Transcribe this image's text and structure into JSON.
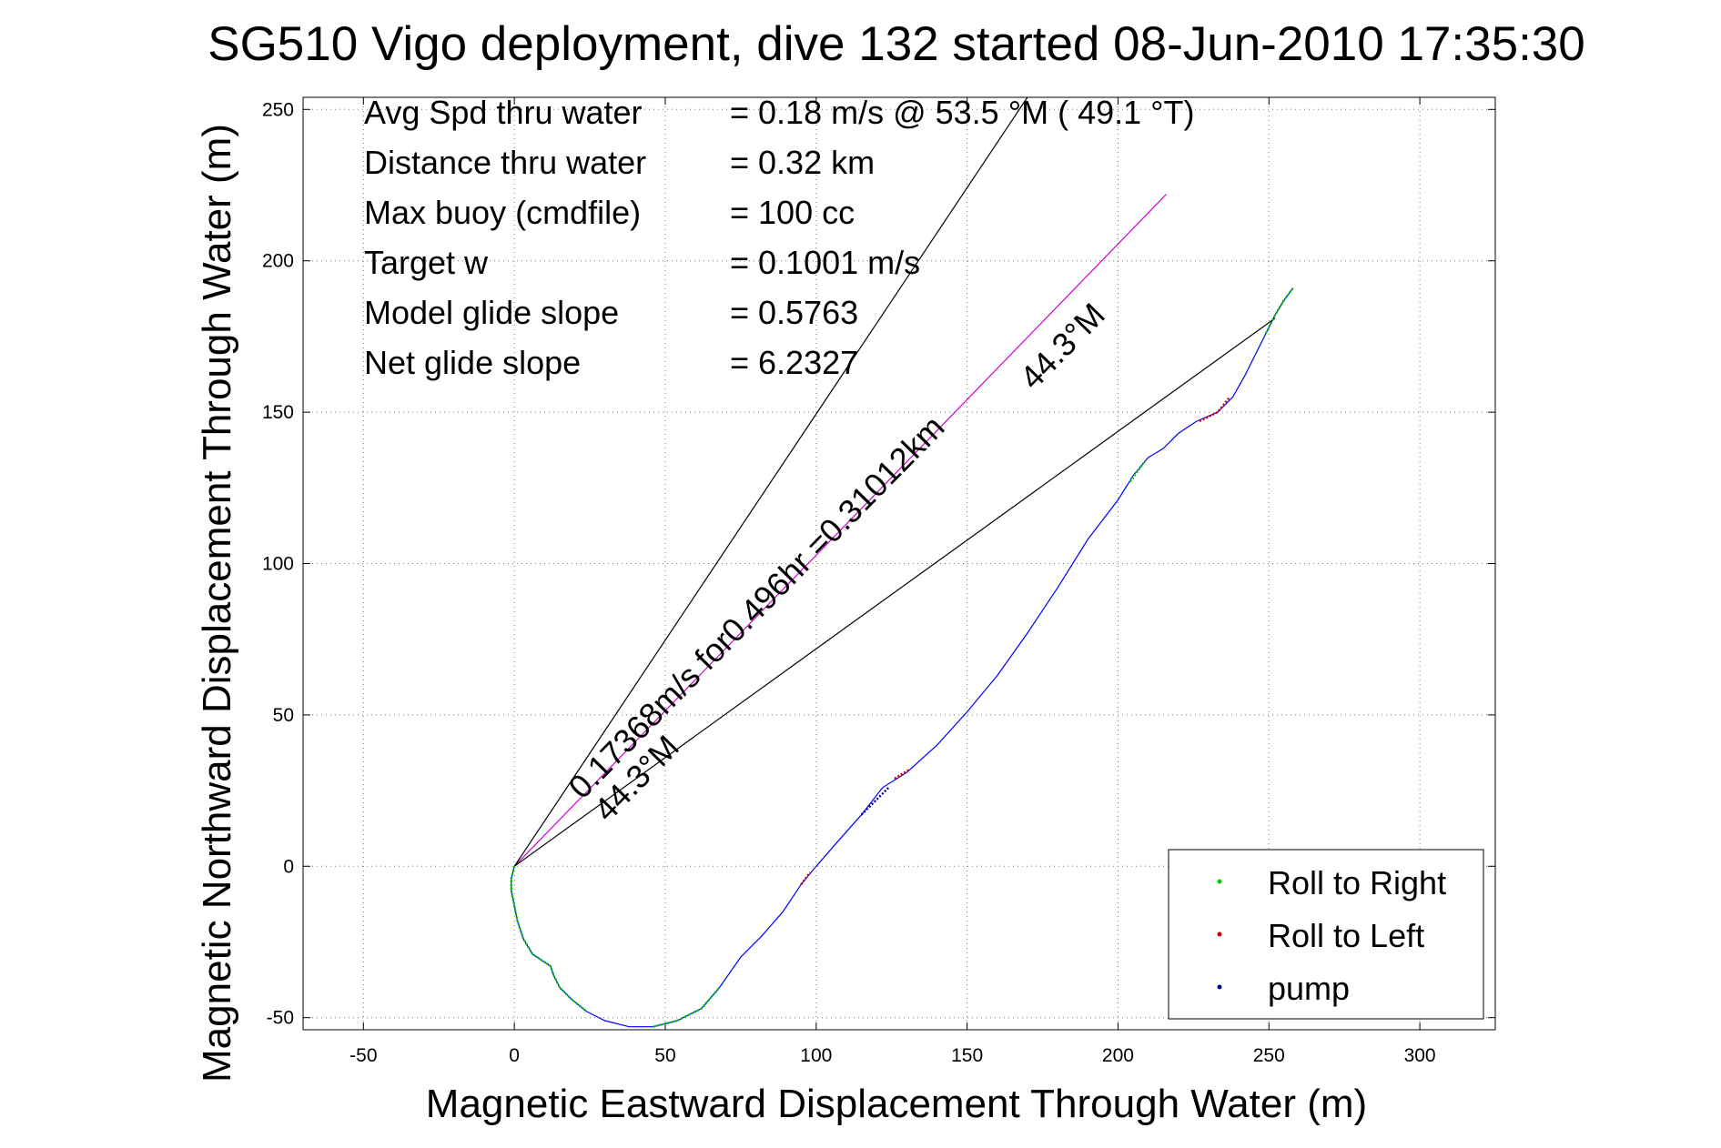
{
  "chart_data": {
    "type": "line",
    "title": "SG510 Vigo deployment, dive 132 started 08-Jun-2010 17:35:30",
    "xlabel": "Magnetic Eastward Displacement Through Water (m)",
    "ylabel": "Magnetic Northward Displacement Through Water (m)",
    "xlim": [
      -70,
      325
    ],
    "ylim": [
      -54,
      254
    ],
    "xticks": [
      -50,
      0,
      50,
      100,
      150,
      200,
      250,
      300
    ],
    "yticks": [
      -50,
      0,
      50,
      100,
      150,
      200,
      250
    ],
    "grid": true,
    "legend_position": "bottom-right",
    "info_lines": [
      {
        "label": "Avg Spd thru water",
        "value": "=  0.18 m/s @  53.5 °M ( 49.1 °T)"
      },
      {
        "label": "Distance thru water",
        "value": "=  0.32 km"
      },
      {
        "label": "Max buoy (cmdfile)",
        "value": "= 100 cc"
      },
      {
        "label": "Target w",
        "value": "= 0.1001 m/s"
      },
      {
        "label": "Model glide slope",
        "value": "= 0.5763"
      },
      {
        "label": "Net glide slope",
        "value": "= 6.2327"
      }
    ],
    "annotations": {
      "current_text": "0.17368m/s for0.496hr =0.31012km",
      "current_heading": "44.3°M",
      "track_heading": "44.3°M"
    },
    "track": {
      "name": "track",
      "color": "#0000ff",
      "points": [
        [
          0,
          0
        ],
        [
          -1,
          -4
        ],
        [
          -1,
          -8
        ],
        [
          0,
          -13
        ],
        [
          1,
          -18
        ],
        [
          3,
          -24
        ],
        [
          6,
          -29
        ],
        [
          9,
          -31
        ],
        [
          12,
          -33
        ],
        [
          13,
          -36
        ],
        [
          15,
          -40
        ],
        [
          19,
          -44
        ],
        [
          24,
          -48
        ],
        [
          30,
          -51
        ],
        [
          38,
          -53
        ],
        [
          46,
          -53
        ],
        [
          54,
          -51
        ],
        [
          62,
          -47
        ],
        [
          68,
          -40
        ],
        [
          75,
          -30
        ],
        [
          82,
          -23
        ],
        [
          89,
          -15
        ],
        [
          95,
          -6
        ],
        [
          100,
          0
        ],
        [
          107,
          8
        ],
        [
          115,
          17
        ],
        [
          122,
          26
        ],
        [
          130,
          31
        ],
        [
          140,
          40
        ],
        [
          150,
          51
        ],
        [
          160,
          63
        ],
        [
          170,
          77
        ],
        [
          180,
          92
        ],
        [
          190,
          108
        ],
        [
          200,
          121
        ],
        [
          205,
          129
        ],
        [
          210,
          135
        ],
        [
          215,
          138
        ],
        [
          220,
          143
        ],
        [
          226,
          147
        ],
        [
          233,
          150
        ],
        [
          238,
          155
        ],
        [
          242,
          162
        ],
        [
          246,
          170
        ],
        [
          249,
          176
        ],
        [
          252,
          182
        ],
        [
          255,
          187
        ],
        [
          258,
          191
        ]
      ]
    },
    "reference_lines": [
      {
        "name": "current-direction-line",
        "color": "#d000d0",
        "points": [
          [
            0,
            0
          ],
          [
            216,
            222
          ]
        ]
      },
      {
        "name": "heading-line-upper",
        "color": "#000000",
        "points": [
          [
            0,
            0
          ],
          [
            170,
            254
          ]
        ]
      },
      {
        "name": "heading-line-lower",
        "color": "#000000",
        "points": [
          [
            0,
            0
          ],
          [
            252,
            181
          ]
        ]
      }
    ],
    "series": [
      {
        "name": "Roll to Right",
        "color": "#00cc00",
        "segments": [
          [
            [
              0,
              0
            ],
            [
              -1,
              -4
            ],
            [
              -1,
              -8
            ],
            [
              0,
              -13
            ],
            [
              1,
              -18
            ],
            [
              3,
              -24
            ],
            [
              6,
              -29
            ],
            [
              9,
              -31
            ],
            [
              12,
              -33
            ],
            [
              13,
              -36
            ],
            [
              15,
              -40
            ],
            [
              19,
              -44
            ],
            [
              24,
              -48
            ]
          ],
          [
            [
              46,
              -53
            ],
            [
              54,
              -51
            ],
            [
              62,
              -47
            ],
            [
              68,
              -40
            ]
          ],
          [
            [
              204,
              127
            ],
            [
              209,
              134
            ]
          ],
          [
            [
              249,
              176
            ],
            [
              252,
              182
            ],
            [
              255,
              187
            ],
            [
              258,
              191
            ]
          ]
        ]
      },
      {
        "name": "Roll to Left",
        "color": "#cc0000",
        "segments": [
          [
            [
              95,
              -6
            ],
            [
              98,
              -2
            ]
          ],
          [
            [
              126,
              29
            ],
            [
              131,
              32
            ]
          ],
          [
            [
              227,
              147
            ],
            [
              233,
              150
            ],
            [
              237,
              155
            ]
          ]
        ]
      },
      {
        "name": "pump",
        "color": "#000080",
        "segments": [
          [
            [
              115,
              17
            ],
            [
              119,
              21
            ],
            [
              124,
              26
            ]
          ]
        ]
      }
    ]
  }
}
